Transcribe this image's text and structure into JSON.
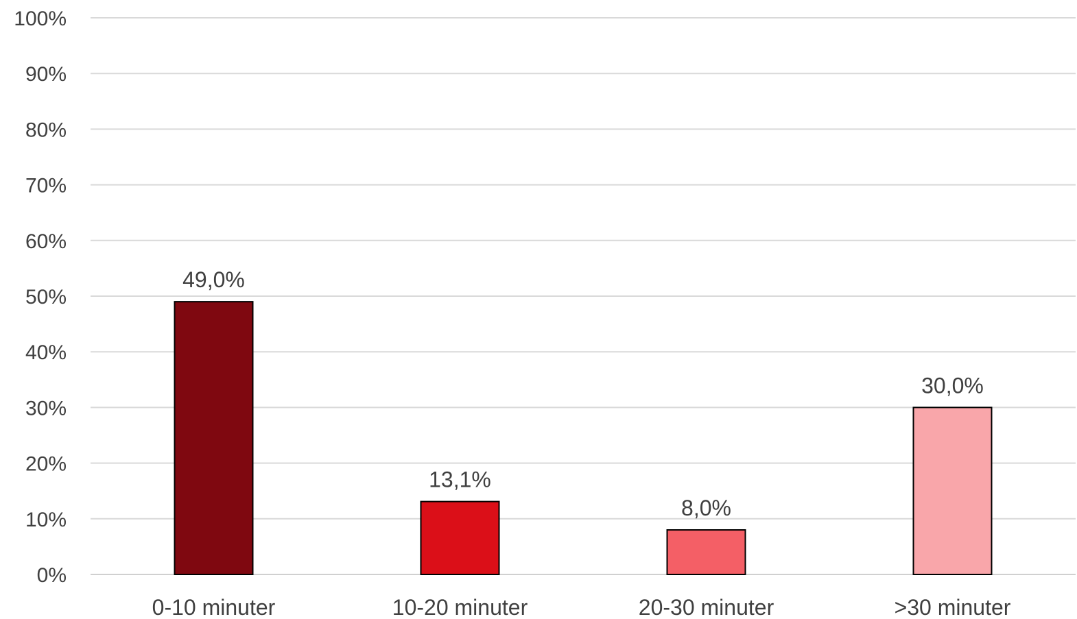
{
  "chart_data": {
    "type": "bar",
    "categories": [
      "0-10 minuter",
      "10-20 minuter",
      "20-30 minuter",
      ">30 minuter"
    ],
    "values": [
      49.0,
      13.1,
      8.0,
      30.0
    ],
    "data_labels": [
      "49,0%",
      "13,1%",
      "8,0%",
      "30,0%"
    ],
    "colors": [
      "#7f0810",
      "#db0f18",
      "#f45f66",
      "#f9a6aa"
    ],
    "ylim": [
      0,
      100
    ],
    "yticks": [
      0,
      10,
      20,
      30,
      40,
      50,
      60,
      70,
      80,
      90,
      100
    ],
    "ytick_labels": [
      "0%",
      "10%",
      "20%",
      "30%",
      "40%",
      "50%",
      "60%",
      "70%",
      "80%",
      "90%",
      "100%"
    ],
    "grid": true,
    "legend": "none"
  }
}
